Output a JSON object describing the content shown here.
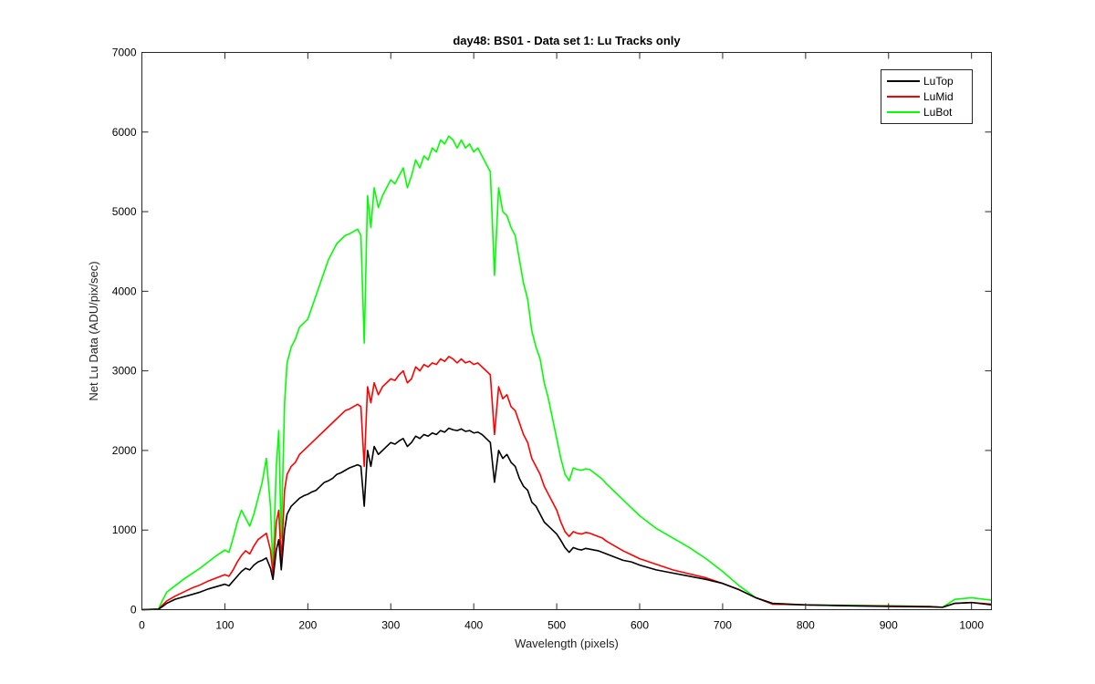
{
  "chart_data": {
    "type": "line",
    "title": "day48: BS01 - Data set 1: Lu Tracks only",
    "xlabel": "Wavelength (pixels)",
    "ylabel": "Net Lu Data (ADU/pix/sec)",
    "xlim": [
      0,
      1024
    ],
    "ylim": [
      0,
      7000
    ],
    "xticks": [
      0,
      100,
      200,
      300,
      400,
      500,
      600,
      700,
      800,
      900,
      1000
    ],
    "yticks": [
      0,
      1000,
      2000,
      3000,
      4000,
      5000,
      6000,
      7000
    ],
    "grid": false,
    "legend": {
      "position": "top-right"
    },
    "x": [
      0,
      20,
      25,
      30,
      40,
      50,
      60,
      70,
      80,
      90,
      100,
      105,
      110,
      115,
      120,
      125,
      130,
      135,
      140,
      145,
      150,
      155,
      158,
      162,
      165,
      168,
      172,
      175,
      180,
      185,
      190,
      195,
      200,
      205,
      210,
      215,
      220,
      225,
      230,
      235,
      240,
      245,
      250,
      255,
      260,
      264,
      268,
      272,
      276,
      280,
      285,
      290,
      295,
      300,
      305,
      310,
      315,
      320,
      325,
      330,
      335,
      340,
      345,
      350,
      355,
      360,
      365,
      370,
      375,
      380,
      385,
      390,
      395,
      400,
      405,
      410,
      415,
      420,
      425,
      430,
      435,
      440,
      445,
      450,
      455,
      460,
      465,
      470,
      475,
      480,
      485,
      490,
      495,
      500,
      505,
      510,
      515,
      520,
      525,
      530,
      535,
      540,
      545,
      550,
      555,
      560,
      570,
      580,
      590,
      600,
      620,
      640,
      660,
      680,
      700,
      720,
      740,
      760,
      800,
      850,
      900,
      950,
      965,
      980,
      1000,
      1024
    ],
    "series": [
      {
        "name": "LuTop",
        "color": "#000000",
        "values": [
          0,
          5,
          40,
          80,
          130,
          160,
          190,
          220,
          260,
          290,
          320,
          300,
          360,
          420,
          480,
          520,
          500,
          560,
          600,
          620,
          650,
          520,
          380,
          750,
          880,
          500,
          1000,
          1200,
          1300,
          1350,
          1400,
          1430,
          1450,
          1480,
          1500,
          1550,
          1600,
          1620,
          1650,
          1700,
          1720,
          1750,
          1780,
          1800,
          1820,
          1800,
          1300,
          2000,
          1800,
          2050,
          1950,
          2000,
          2050,
          2100,
          2080,
          2120,
          2150,
          2050,
          2100,
          2180,
          2150,
          2200,
          2180,
          2220,
          2200,
          2250,
          2230,
          2280,
          2260,
          2250,
          2270,
          2240,
          2250,
          2220,
          2230,
          2200,
          2150,
          2100,
          1600,
          2000,
          1900,
          1950,
          1850,
          1800,
          1650,
          1550,
          1500,
          1350,
          1300,
          1200,
          1100,
          1050,
          1000,
          950,
          870,
          780,
          720,
          780,
          760,
          750,
          770,
          760,
          750,
          740,
          720,
          700,
          660,
          620,
          600,
          560,
          500,
          460,
          420,
          380,
          330,
          250,
          150,
          80,
          60,
          50,
          40,
          35,
          30,
          80,
          90,
          60
        ]
      },
      {
        "name": "LuMid",
        "color": "#ff0000",
        "values": [
          0,
          5,
          60,
          110,
          170,
          220,
          270,
          310,
          360,
          400,
          440,
          420,
          500,
          600,
          680,
          740,
          700,
          800,
          880,
          920,
          960,
          750,
          450,
          1100,
          1250,
          600,
          1500,
          1700,
          1800,
          1850,
          1950,
          2000,
          2050,
          2100,
          2150,
          2200,
          2250,
          2300,
          2350,
          2400,
          2450,
          2500,
          2520,
          2550,
          2580,
          2550,
          1800,
          2800,
          2600,
          2850,
          2700,
          2800,
          2850,
          2900,
          2880,
          2950,
          3000,
          2850,
          2900,
          3050,
          3000,
          3080,
          3050,
          3100,
          3080,
          3150,
          3120,
          3180,
          3150,
          3100,
          3150,
          3100,
          3120,
          3080,
          3100,
          3050,
          3000,
          2950,
          2200,
          2800,
          2650,
          2700,
          2550,
          2500,
          2350,
          2200,
          2100,
          1900,
          1800,
          1700,
          1550,
          1450,
          1350,
          1250,
          1100,
          980,
          920,
          980,
          960,
          950,
          970,
          960,
          940,
          920,
          900,
          860,
          800,
          740,
          690,
          640,
          570,
          500,
          450,
          400,
          330,
          250,
          150,
          70,
          60,
          50,
          45,
          40,
          30,
          80,
          90,
          70
        ]
      },
      {
        "name": "LuBot",
        "color": "#00ff00",
        "values": [
          0,
          10,
          120,
          220,
          300,
          380,
          450,
          520,
          600,
          680,
          750,
          720,
          900,
          1100,
          1250,
          1150,
          1050,
          1200,
          1400,
          1600,
          1900,
          1300,
          500,
          1800,
          2250,
          900,
          2600,
          3100,
          3300,
          3400,
          3550,
          3600,
          3650,
          3800,
          3950,
          4100,
          4250,
          4400,
          4500,
          4600,
          4650,
          4700,
          4720,
          4750,
          4780,
          4700,
          3350,
          5200,
          4800,
          5300,
          5050,
          5200,
          5300,
          5400,
          5350,
          5450,
          5550,
          5300,
          5450,
          5650,
          5550,
          5700,
          5650,
          5800,
          5750,
          5900,
          5850,
          5950,
          5900,
          5800,
          5900,
          5800,
          5850,
          5750,
          5800,
          5700,
          5600,
          5500,
          4200,
          5300,
          5000,
          4950,
          4800,
          4700,
          4400,
          4100,
          3900,
          3500,
          3300,
          3150,
          2850,
          2650,
          2400,
          2150,
          1900,
          1700,
          1620,
          1780,
          1760,
          1750,
          1770,
          1760,
          1720,
          1680,
          1640,
          1580,
          1480,
          1380,
          1280,
          1180,
          1020,
          900,
          780,
          640,
          480,
          300,
          150,
          70,
          60,
          55,
          50,
          40,
          30,
          130,
          150,
          120
        ]
      }
    ]
  }
}
